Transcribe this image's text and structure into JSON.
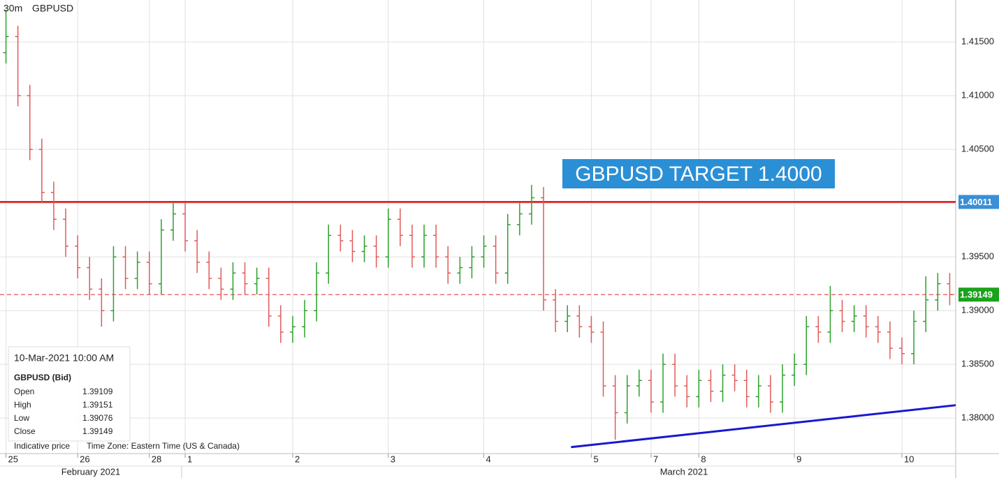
{
  "chart_data": {
    "type": "ohlc",
    "interval": "30m",
    "symbol": "GBPUSD",
    "annotation": "GBPUSD TARGET 1.4000",
    "categories": [
      "25",
      null,
      null,
      null,
      null,
      null,
      "26",
      null,
      null,
      null,
      null,
      null,
      "28",
      null,
      null,
      "1",
      null,
      null,
      null,
      null,
      null,
      null,
      null,
      null,
      "2",
      null,
      null,
      null,
      null,
      null,
      null,
      null,
      "3",
      null,
      null,
      null,
      null,
      null,
      null,
      null,
      "4",
      null,
      null,
      null,
      null,
      null,
      null,
      null,
      null,
      "5",
      null,
      null,
      null,
      null,
      "7",
      null,
      null,
      null,
      "8",
      null,
      null,
      null,
      null,
      null,
      null,
      null,
      "9",
      null,
      null,
      null,
      null,
      null,
      null,
      null,
      null,
      "10",
      null,
      null,
      null,
      null
    ],
    "month_labels": [
      "February 2021",
      "March 2021"
    ],
    "open": [
      1.414,
      1.4155,
      1.41,
      1.405,
      1.401,
      1.3985,
      1.396,
      1.394,
      1.392,
      1.39,
      1.395,
      1.393,
      1.3945,
      1.3925,
      1.3975,
      1.399,
      1.3965,
      1.3945,
      1.393,
      1.392,
      1.3935,
      1.3925,
      1.393,
      1.3895,
      1.388,
      1.3885,
      1.39,
      1.3935,
      1.397,
      1.3965,
      1.3955,
      1.396,
      1.395,
      1.3985,
      1.397,
      1.395,
      1.397,
      1.395,
      1.3935,
      1.394,
      1.395,
      1.396,
      1.3935,
      1.398,
      1.399,
      1.4005,
      1.391,
      1.389,
      1.3895,
      1.3885,
      1.388,
      1.383,
      1.3805,
      1.383,
      1.3835,
      1.3815,
      1.385,
      1.383,
      1.382,
      1.3835,
      1.3825,
      1.384,
      1.3835,
      1.382,
      1.383,
      1.3815,
      1.384,
      1.385,
      1.3885,
      1.388,
      1.39,
      1.389,
      1.3895,
      1.3885,
      1.388,
      1.3865,
      1.386,
      1.389,
      1.391,
      1.3925
    ],
    "high": [
      1.418,
      1.4165,
      1.411,
      1.406,
      1.402,
      1.3995,
      1.397,
      1.395,
      1.393,
      1.396,
      1.396,
      1.3955,
      1.3955,
      1.3985,
      1.4,
      1.4,
      1.3975,
      1.3955,
      1.394,
      1.3945,
      1.3945,
      1.394,
      1.394,
      1.3905,
      1.3895,
      1.391,
      1.3945,
      1.398,
      1.398,
      1.3975,
      1.397,
      1.397,
      1.3995,
      1.3995,
      1.398,
      1.398,
      1.398,
      1.396,
      1.395,
      1.396,
      1.397,
      1.397,
      1.399,
      1.4,
      1.4017,
      1.4015,
      1.392,
      1.3905,
      1.3905,
      1.3895,
      1.389,
      1.384,
      1.384,
      1.3845,
      1.3845,
      1.386,
      1.386,
      1.384,
      1.3845,
      1.3845,
      1.385,
      1.385,
      1.3845,
      1.384,
      1.384,
      1.385,
      1.386,
      1.3895,
      1.3895,
      1.3923,
      1.391,
      1.3905,
      1.3905,
      1.3895,
      1.389,
      1.3875,
      1.39,
      1.3932,
      1.3935,
      1.3935
    ],
    "low": [
      1.413,
      1.409,
      1.404,
      1.4,
      1.3975,
      1.395,
      1.393,
      1.391,
      1.3885,
      1.389,
      1.392,
      1.392,
      1.3915,
      1.3915,
      1.3965,
      1.3955,
      1.3935,
      1.392,
      1.391,
      1.391,
      1.3915,
      1.3915,
      1.3885,
      1.387,
      1.387,
      1.3875,
      1.389,
      1.3925,
      1.3955,
      1.3945,
      1.3945,
      1.394,
      1.394,
      1.396,
      1.394,
      1.394,
      1.394,
      1.3925,
      1.3925,
      1.393,
      1.394,
      1.3925,
      1.3925,
      1.397,
      1.398,
      1.39,
      1.388,
      1.388,
      1.3875,
      1.387,
      1.382,
      1.378,
      1.3795,
      1.382,
      1.3805,
      1.3805,
      1.382,
      1.381,
      1.381,
      1.3815,
      1.3815,
      1.3825,
      1.381,
      1.381,
      1.3805,
      1.3805,
      1.383,
      1.384,
      1.387,
      1.387,
      1.388,
      1.388,
      1.3875,
      1.387,
      1.3855,
      1.385,
      1.385,
      1.388,
      1.39,
      1.3905
    ],
    "close": [
      1.4155,
      1.41,
      1.405,
      1.401,
      1.3985,
      1.396,
      1.394,
      1.392,
      1.39,
      1.395,
      1.393,
      1.3945,
      1.3925,
      1.3975,
      1.399,
      1.3965,
      1.3945,
      1.393,
      1.392,
      1.3935,
      1.3925,
      1.393,
      1.3895,
      1.388,
      1.3885,
      1.39,
      1.3935,
      1.397,
      1.3965,
      1.3955,
      1.396,
      1.395,
      1.3985,
      1.397,
      1.395,
      1.397,
      1.395,
      1.3935,
      1.394,
      1.395,
      1.396,
      1.3935,
      1.398,
      1.399,
      1.4005,
      1.391,
      1.389,
      1.3895,
      1.3885,
      1.388,
      1.383,
      1.3805,
      1.383,
      1.3835,
      1.3815,
      1.385,
      1.383,
      1.382,
      1.3835,
      1.3825,
      1.384,
      1.3835,
      1.382,
      1.383,
      1.3815,
      1.384,
      1.385,
      1.3885,
      1.388,
      1.39,
      1.389,
      1.3895,
      1.3885,
      1.388,
      1.3865,
      1.386,
      1.389,
      1.391,
      1.3925,
      1.3915
    ],
    "up_color": "#2ca02c",
    "down_color": "#e05a5a",
    "ylim": [
      1.3767,
      1.4189
    ],
    "yticks": [
      {
        "value": 1.38,
        "label": "1.38000"
      },
      {
        "value": 1.385,
        "label": "1.38500"
      },
      {
        "value": 1.39,
        "label": "1.39000"
      },
      {
        "value": 1.395,
        "label": "1.39500"
      },
      {
        "value": 1.4,
        "label": "1.40000"
      },
      {
        "value": 1.405,
        "label": "1.40500"
      },
      {
        "value": 1.41,
        "label": "1.41000"
      },
      {
        "value": 1.415,
        "label": "1.41500"
      }
    ],
    "grid": true,
    "hlines": [
      {
        "value": 1.40011,
        "label": "1.40011",
        "color": "#e01010",
        "label_color": "#3a8fd6",
        "dashed": false
      },
      {
        "value": 1.39149,
        "label": "1.39149",
        "color": "#e86060",
        "label_color": "#1aa31a",
        "dashed": true
      }
    ],
    "trendline": {
      "x": [
        47.3,
        79.5
      ],
      "values": [
        1.3773,
        1.3812
      ],
      "color": "#1818d0"
    },
    "info": {
      "datetime": "10-Mar-2021 10:00 AM",
      "heading": "GBPUSD (Bid)",
      "rows": [
        [
          "Open",
          1.39109
        ],
        [
          "High",
          1.39151
        ],
        [
          "Low",
          1.39076
        ],
        [
          "Close",
          1.39149
        ]
      ],
      "footer": [
        "Indicative price",
        "Time Zone: Eastern Time (US & Canada)"
      ]
    }
  }
}
